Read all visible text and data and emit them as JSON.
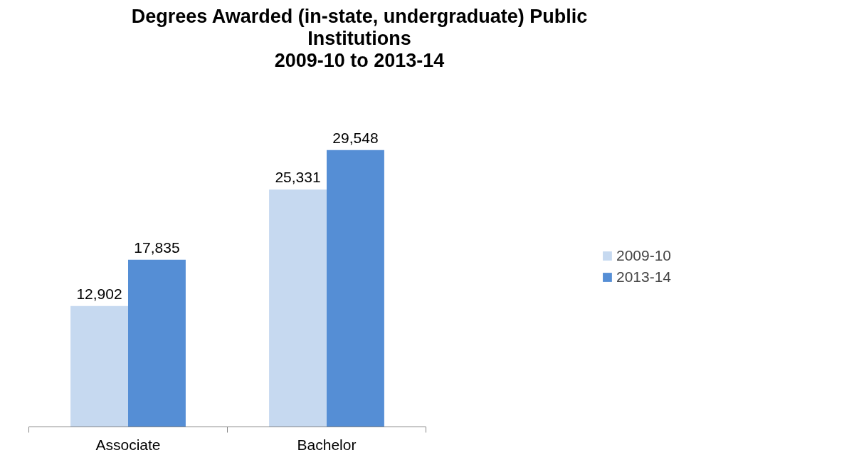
{
  "chart_data": {
    "type": "bar",
    "title": "Degrees Awarded (in-state, undergraduate) Public Institutions\n2009-10 to 2013-14",
    "categories": [
      "Associate",
      "Bachelor"
    ],
    "series": [
      {
        "name": "2009-10",
        "color": "#c6d9f0",
        "values": [
          12902,
          25331
        ],
        "value_labels": [
          "12,902",
          "25,331"
        ]
      },
      {
        "name": "2013-14",
        "color": "#558ed5",
        "values": [
          17835,
          29548
        ],
        "value_labels": [
          "17,835",
          "29,548"
        ]
      }
    ],
    "data_labels": true,
    "legend": "right",
    "grid": false
  }
}
